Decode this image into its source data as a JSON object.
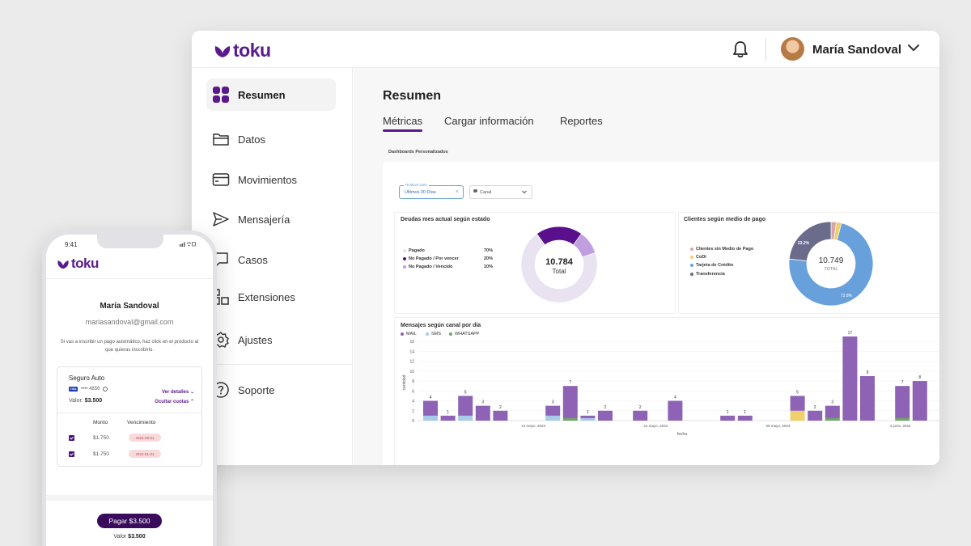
{
  "app": {
    "logo": "toku",
    "user_name": "María Sandoval"
  },
  "sidebar": {
    "items": [
      {
        "label": "Resumen",
        "icon": "grid-icon",
        "active": true
      },
      {
        "label": "Datos",
        "icon": "folder-icon"
      },
      {
        "label": "Movimientos",
        "icon": "card-icon"
      },
      {
        "label": "Mensajería",
        "icon": "send-icon"
      },
      {
        "label": "Casos",
        "icon": "chat-icon"
      },
      {
        "label": "Extensiones",
        "icon": "puzzle-icon"
      },
      {
        "label": "Ajustes",
        "icon": "gear-icon"
      },
      {
        "label": "Soporte",
        "icon": "help-icon"
      }
    ]
  },
  "main": {
    "title": "Resumen",
    "tabs": [
      {
        "label": "Métricas",
        "active": true
      },
      {
        "label": "Cargar información"
      },
      {
        "label": "Reportes"
      }
    ],
    "dashboards_label": "Dashboards Personalizados",
    "filters": {
      "date_label": "Relative Date",
      "date_value": "Ultimos 30 Días",
      "channel_value": "Canal"
    }
  },
  "colors": {
    "brand": "#5a1a8c",
    "mail": "#8e62b5",
    "sms": "#a8cbea",
    "whatsapp": "#6da668",
    "codi": "#f0d06c",
    "card": "#68a0dc",
    "transfer": "#6b6b8c",
    "no_payment": "#d9a6a8"
  },
  "chart_data": [
    {
      "type": "pie",
      "title": "Deudas mes actual según estado",
      "total_value": "10.784",
      "total_label": "Total",
      "slices": [
        {
          "label": "Pagado",
          "value": 70,
          "pct": "70%",
          "color": "#e8e2f1"
        },
        {
          "label": "No Pagado / Por vencer",
          "value": 20,
          "pct": "20%",
          "color": "#5a0f8c"
        },
        {
          "label": "No Pagado / Vencido",
          "value": 10,
          "pct": "10%",
          "color": "#c09ee0"
        }
      ]
    },
    {
      "type": "pie",
      "title": "Clientes según medio de pago",
      "total_value": "10.749",
      "total_label": "TOTAL",
      "slices": [
        {
          "label": "Clientes sin Medio de Pago",
          "value": 2,
          "color": "#d9a6a8"
        },
        {
          "label": "CoDi",
          "value": 2,
          "color": "#f0d06c"
        },
        {
          "label": "Tarjeta de Crédito",
          "value": 72.8,
          "pct": "72.8%",
          "color": "#68a0dc"
        },
        {
          "label": "Transferencia",
          "value": 23.2,
          "pct": "23.2%",
          "color": "#6b6b8c"
        }
      ]
    },
    {
      "type": "bar",
      "title": "Mensajes según canal por día",
      "xlabel": "fecha",
      "ylabel": "cantidad",
      "ylim": [
        0,
        17
      ],
      "yticks": [
        "0",
        "2",
        "4",
        "6",
        "8",
        "10",
        "12",
        "14",
        "16"
      ],
      "xticks": [
        "14 mayo, 2023",
        "21 mayo, 2023",
        "28 mayo, 2023",
        "4 junio, 2023"
      ],
      "series_names": [
        "MAIL",
        "SMS",
        "WHATSAPP"
      ],
      "bars": [
        {
          "label": "4",
          "mail": 3,
          "sms": 1,
          "whatsapp": 0
        },
        {
          "label": "1",
          "mail": 1,
          "sms": 0,
          "whatsapp": 0
        },
        {
          "label": "5",
          "mail": 4,
          "sms": 1,
          "whatsapp": 0
        },
        {
          "label": "3",
          "mail": 3,
          "sms": 0,
          "whatsapp": 0
        },
        {
          "label": "2",
          "mail": 2,
          "sms": 0,
          "whatsapp": 0
        },
        {
          "label": "",
          "mail": 0,
          "sms": 0,
          "whatsapp": 0
        },
        {
          "label": "",
          "mail": 0,
          "sms": 0,
          "whatsapp": 0
        },
        {
          "label": "3",
          "mail": 2,
          "sms": 1,
          "whatsapp": 0
        },
        {
          "label": "7",
          "mail": 6.5,
          "sms": 0,
          "whatsapp": 0.5
        },
        {
          "label": "1",
          "mail": 0.5,
          "sms": 0.5,
          "whatsapp": 0
        },
        {
          "label": "2",
          "mail": 2,
          "sms": 0,
          "whatsapp": 0
        },
        {
          "label": "",
          "mail": 0,
          "sms": 0,
          "whatsapp": 0
        },
        {
          "label": "2",
          "mail": 2,
          "sms": 0,
          "whatsapp": 0
        },
        {
          "label": "",
          "mail": 0,
          "sms": 0,
          "whatsapp": 0
        },
        {
          "label": "4",
          "mail": 4,
          "sms": 0,
          "whatsapp": 0
        },
        {
          "label": "",
          "mail": 0,
          "sms": 0,
          "whatsapp": 0
        },
        {
          "label": "",
          "mail": 0,
          "sms": 0,
          "whatsapp": 0
        },
        {
          "label": "1",
          "mail": 1,
          "sms": 0,
          "whatsapp": 0
        },
        {
          "label": "1",
          "mail": 1,
          "sms": 0,
          "whatsapp": 0
        },
        {
          "label": "",
          "mail": 0,
          "sms": 0,
          "whatsapp": 0
        },
        {
          "label": "",
          "mail": 0,
          "sms": 0,
          "whatsapp": 0
        },
        {
          "label": "5",
          "mail": 3,
          "sms": 0,
          "whatsapp": 0,
          "codi": 2
        },
        {
          "label": "2",
          "mail": 2,
          "sms": 0,
          "whatsapp": 0
        },
        {
          "label": "3",
          "mail": 2.5,
          "sms": 0,
          "whatsapp": 0.5
        },
        {
          "label": "17",
          "mail": 17,
          "sms": 0,
          "whatsapp": 0
        },
        {
          "label": "9",
          "mail": 9,
          "sms": 0,
          "whatsapp": 0
        },
        {
          "label": "",
          "mail": 0,
          "sms": 0,
          "whatsapp": 0
        },
        {
          "label": "7",
          "mail": 6.5,
          "sms": 0,
          "whatsapp": 0.5
        },
        {
          "label": "8",
          "mail": 8,
          "sms": 0,
          "whatsapp": 0
        }
      ]
    }
  ],
  "phone": {
    "time": "9:41",
    "logo": "toku",
    "name": "María Sandoval",
    "email": "mariasandoval@gmail.com",
    "message": "Si vas a inscribir un pago automático, haz click en el producto al que quieras inscribirlo.",
    "product": {
      "title": "Seguro Auto",
      "card_brand": "VISA",
      "card_mask": "•••• 4856",
      "valor_label": "Valor:",
      "valor": "$3.500",
      "details_link": "Ver detalles",
      "hide_link": "Ocultar cuotas",
      "col_monto": "Monto",
      "col_venc": "Vencimiento",
      "rows": [
        {
          "monto": "$1.750",
          "venc": "2024-05-01"
        },
        {
          "monto": "$1.750",
          "venc": "2024-01-01"
        }
      ]
    },
    "pay_button": "Pagar $3.500",
    "pay_label": "Valor",
    "pay_value": "$3.500"
  }
}
